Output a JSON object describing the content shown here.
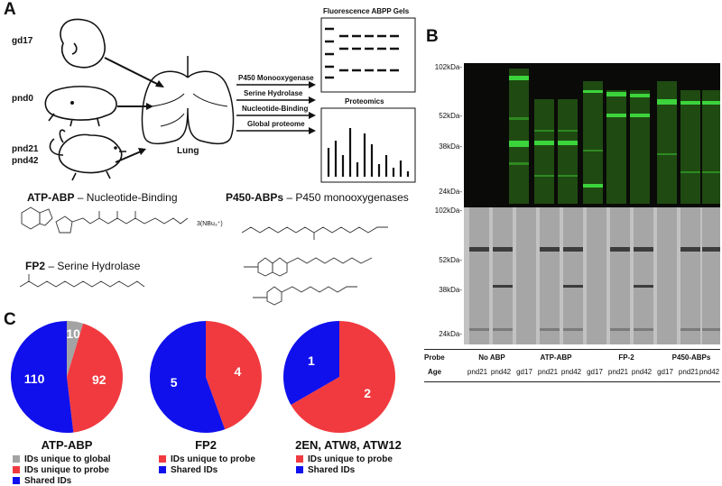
{
  "panels": {
    "a": "A",
    "b": "B",
    "c": "C"
  },
  "panel_a": {
    "animals": [
      "gd17",
      "pnd0",
      "pnd21",
      "pnd42"
    ],
    "organ": "Lung",
    "arrows": [
      "P450 Monooxygenase",
      "Serine Hydrolase",
      "Nucleotide-Binding",
      "Global proteome"
    ],
    "outputs": [
      "Fluorescence ABPP Gels",
      "Proteomics"
    ],
    "probes": {
      "atp_bold": "ATP-ABP",
      "atp_rest": " – Nucleotide-Binding",
      "atp_salt": "3(NBu₃⁺)",
      "fp2_bold": "FP2",
      "fp2_rest": " – Serine Hydrolase",
      "p450_bold": "P450-ABPs",
      "p450_rest": " – P450 monooxygenases"
    }
  },
  "panel_b": {
    "mw_top": [
      "102kDa-",
      "52kDa-",
      "38kDa-",
      "24kDa-"
    ],
    "mw_bottom": [
      "102kDa-",
      "52kDa-",
      "38kDa-",
      "24kDa-"
    ],
    "probe_label": "Probe",
    "age_label": "Age",
    "probes": [
      "No ABP",
      "ATP-ABP",
      "FP-2",
      "P450-ABPs"
    ],
    "ages": [
      "pnd21",
      "pnd42",
      "gd17",
      "pnd21",
      "pnd42",
      "gd17",
      "pnd21",
      "pnd42",
      "gd17",
      "pnd21",
      "pnd42"
    ]
  },
  "panel_c": {
    "colors": {
      "gray": "#a3a3a3",
      "red": "#f13a3f",
      "blue": "#1010ec"
    },
    "pies": [
      {
        "title": "ATP-ABP",
        "slices": [
          {
            "label": "10",
            "value": 10,
            "color": "#a3a3a3"
          },
          {
            "label": "92",
            "value": 92,
            "color": "#f13a3f"
          },
          {
            "label": "110",
            "value": 110,
            "color": "#1010ec"
          }
        ],
        "legend": [
          "IDs unique to global",
          "IDs unique to probe",
          "Shared IDs"
        ]
      },
      {
        "title": "FP2",
        "slices": [
          {
            "label": "4",
            "value": 4,
            "color": "#f13a3f"
          },
          {
            "label": "5",
            "value": 5,
            "color": "#1010ec"
          }
        ],
        "legend": [
          "IDs unique to probe",
          "Shared IDs"
        ]
      },
      {
        "title": "2EN, ATW8, ATW12",
        "slices": [
          {
            "label": "2",
            "value": 2,
            "color": "#f13a3f"
          },
          {
            "label": "1",
            "value": 1,
            "color": "#1010ec"
          }
        ],
        "legend": [
          "IDs unique to probe",
          "Shared IDs"
        ]
      }
    ]
  }
}
